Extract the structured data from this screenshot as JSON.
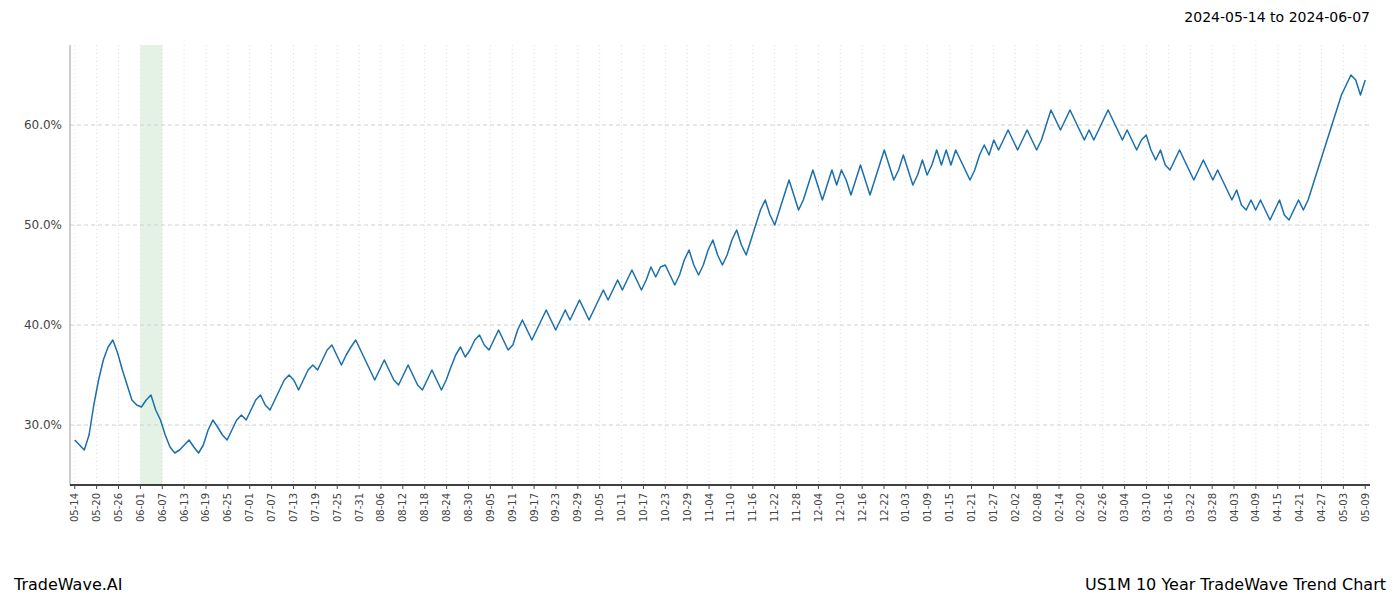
{
  "chart_data": {
    "type": "line",
    "title": "2024-05-14 to 2024-06-07",
    "annotations": [
      "TradeWave.AI",
      "US1M 10 Year TradeWave Trend Chart"
    ],
    "color": "#1a6fac",
    "grid": true,
    "ylim": [
      24.0,
      68.0
    ],
    "yticks": [
      {
        "value": 30.0,
        "label": "30.0%"
      },
      {
        "value": 40.0,
        "label": "40.0%"
      },
      {
        "value": 50.0,
        "label": "50.0%"
      },
      {
        "value": 60.0,
        "label": "60.0%"
      }
    ],
    "x_tick_labels": [
      "05-14",
      "05-20",
      "05-26",
      "06-01",
      "06-07",
      "06-13",
      "06-19",
      "06-25",
      "07-01",
      "07-07",
      "07-13",
      "07-19",
      "07-25",
      "07-31",
      "08-06",
      "08-12",
      "08-18",
      "08-24",
      "08-30",
      "09-05",
      "09-11",
      "09-17",
      "09-23",
      "09-29",
      "10-05",
      "10-11",
      "10-17",
      "10-23",
      "10-29",
      "11-04",
      "11-10",
      "11-16",
      "11-22",
      "11-28",
      "12-04",
      "12-10",
      "12-16",
      "12-22",
      "01-03",
      "01-09",
      "01-15",
      "01-21",
      "01-27",
      "02-02",
      "02-08",
      "02-14",
      "02-20",
      "02-26",
      "03-04",
      "03-10",
      "03-16",
      "03-22",
      "03-28",
      "04-03",
      "04-09",
      "04-15",
      "04-21",
      "04-27",
      "05-03",
      "05-09"
    ],
    "shade": {
      "from": "06-01",
      "to": "06-07",
      "color": "#c8e6c9"
    },
    "values": [
      28.5,
      28.0,
      27.5,
      29.0,
      32.0,
      34.5,
      36.5,
      37.8,
      38.5,
      37.2,
      35.5,
      34.0,
      32.5,
      32.0,
      31.8,
      32.5,
      33.0,
      31.5,
      30.5,
      29.0,
      27.8,
      27.2,
      27.5,
      28.0,
      28.5,
      27.8,
      27.2,
      28.0,
      29.5,
      30.5,
      29.8,
      29.0,
      28.5,
      29.5,
      30.5,
      31.0,
      30.5,
      31.5,
      32.5,
      33.0,
      32.0,
      31.5,
      32.5,
      33.5,
      34.5,
      35.0,
      34.5,
      33.5,
      34.5,
      35.5,
      36.0,
      35.5,
      36.5,
      37.5,
      38.0,
      37.0,
      36.0,
      37.0,
      37.8,
      38.5,
      37.5,
      36.5,
      35.5,
      34.5,
      35.5,
      36.5,
      35.5,
      34.5,
      34.0,
      35.0,
      36.0,
      35.0,
      34.0,
      33.5,
      34.5,
      35.5,
      34.5,
      33.5,
      34.5,
      35.8,
      37.0,
      37.8,
      36.8,
      37.5,
      38.5,
      39.0,
      38.0,
      37.5,
      38.5,
      39.5,
      38.5,
      37.5,
      38.0,
      39.5,
      40.5,
      39.5,
      38.5,
      39.5,
      40.5,
      41.5,
      40.5,
      39.5,
      40.5,
      41.5,
      40.5,
      41.5,
      42.5,
      41.5,
      40.5,
      41.5,
      42.5,
      43.5,
      42.5,
      43.5,
      44.5,
      43.5,
      44.5,
      45.5,
      44.5,
      43.5,
      44.5,
      45.8,
      44.8,
      45.8,
      46.0,
      45.0,
      44.0,
      45.0,
      46.5,
      47.5,
      46.0,
      45.0,
      46.0,
      47.5,
      48.5,
      47.0,
      46.0,
      47.0,
      48.5,
      49.5,
      48.0,
      47.0,
      48.5,
      50.0,
      51.5,
      52.5,
      51.0,
      50.0,
      51.5,
      53.0,
      54.5,
      53.0,
      51.5,
      52.5,
      54.0,
      55.5,
      54.0,
      52.5,
      54.0,
      55.5,
      54.0,
      55.5,
      54.5,
      53.0,
      54.5,
      56.0,
      54.5,
      53.0,
      54.5,
      56.0,
      57.5,
      56.0,
      54.5,
      55.5,
      57.0,
      55.5,
      54.0,
      55.0,
      56.5,
      55.0,
      56.0,
      57.5,
      56.0,
      57.5,
      56.0,
      57.5,
      56.5,
      55.5,
      54.5,
      55.5,
      57.0,
      58.0,
      57.0,
      58.5,
      57.5,
      58.5,
      59.5,
      58.5,
      57.5,
      58.5,
      59.5,
      58.5,
      57.5,
      58.5,
      60.0,
      61.5,
      60.5,
      59.5,
      60.5,
      61.5,
      60.5,
      59.5,
      58.5,
      59.5,
      58.5,
      59.5,
      60.5,
      61.5,
      60.5,
      59.5,
      58.5,
      59.5,
      58.5,
      57.5,
      58.5,
      59.0,
      57.5,
      56.5,
      57.5,
      56.0,
      55.5,
      56.5,
      57.5,
      56.5,
      55.5,
      54.5,
      55.5,
      56.5,
      55.5,
      54.5,
      55.5,
      54.5,
      53.5,
      52.5,
      53.5,
      52.0,
      51.5,
      52.5,
      51.5,
      52.5,
      51.5,
      50.5,
      51.5,
      52.5,
      51.0,
      50.5,
      51.5,
      52.5,
      51.5,
      52.5,
      54.0,
      55.5,
      57.0,
      58.5,
      60.0,
      61.5,
      63.0,
      64.0,
      65.0,
      64.5,
      63.0,
      64.5
    ]
  }
}
